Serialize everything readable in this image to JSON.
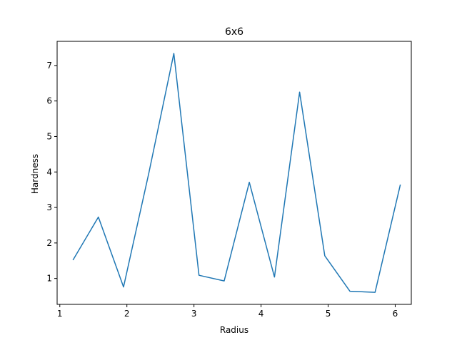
{
  "chart_data": {
    "type": "line",
    "title": "6x6",
    "xlabel": "Radius",
    "ylabel": "Hardness",
    "xlim": [
      0.96,
      6.24
    ],
    "ylim": [
      0.27,
      7.68
    ],
    "xticks": [
      1,
      2,
      3,
      4,
      5,
      6
    ],
    "yticks": [
      1,
      2,
      3,
      4,
      5,
      6,
      7
    ],
    "grid": false,
    "series": [
      {
        "color": "#1f77b4",
        "x": [
          1.2,
          1.575,
          1.95,
          2.325,
          2.7,
          3.075,
          3.45,
          3.825,
          4.2,
          4.575,
          4.95,
          5.325,
          5.7,
          6.075
        ],
        "y": [
          1.53,
          2.73,
          0.76,
          3.95,
          7.34,
          1.09,
          0.93,
          3.71,
          1.04,
          6.25,
          1.64,
          0.64,
          0.61,
          3.63
        ]
      }
    ]
  }
}
